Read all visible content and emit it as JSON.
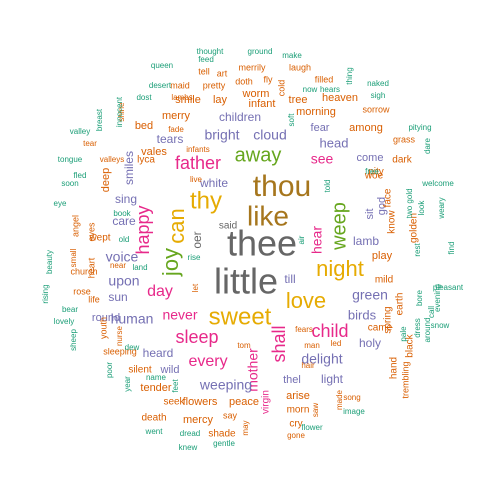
{
  "word_cloud": {
    "colors": {
      "teal": "#1b9e77",
      "orange": "#d95f02",
      "purple": "#7570b3",
      "pink": "#e7298a",
      "green": "#66a61e",
      "gold": "#e6ab02",
      "brown": "#a6761d",
      "gray": "#666666"
    },
    "words": [
      {
        "text": "thee",
        "weight": 36,
        "color": "gray"
      },
      {
        "text": "little",
        "weight": 36,
        "color": "gray"
      },
      {
        "text": "thou",
        "weight": 30,
        "color": "brown"
      },
      {
        "text": "like",
        "weight": 28,
        "color": "brown"
      },
      {
        "text": "thy",
        "weight": 24,
        "color": "gold"
      },
      {
        "text": "sweet",
        "weight": 24,
        "color": "gold"
      },
      {
        "text": "can",
        "weight": 22,
        "color": "gold"
      },
      {
        "text": "joy",
        "weight": 22,
        "color": "green"
      },
      {
        "text": "night",
        "weight": 22,
        "color": "gold"
      },
      {
        "text": "love",
        "weight": 22,
        "color": "gold"
      },
      {
        "text": "away",
        "weight": 20,
        "color": "green"
      },
      {
        "text": "weep",
        "weight": 20,
        "color": "green"
      },
      {
        "text": "sleep",
        "weight": 18,
        "color": "pink"
      },
      {
        "text": "father",
        "weight": 18,
        "color": "pink"
      },
      {
        "text": "happy",
        "weight": 18,
        "color": "pink"
      },
      {
        "text": "shall",
        "weight": 18,
        "color": "pink"
      },
      {
        "text": "child",
        "weight": 18,
        "color": "pink"
      },
      {
        "text": "day",
        "weight": 16,
        "color": "pink"
      },
      {
        "text": "every",
        "weight": 16,
        "color": "pink"
      },
      {
        "text": "mother",
        "weight": 14,
        "color": "pink"
      },
      {
        "text": "never",
        "weight": 14,
        "color": "pink"
      },
      {
        "text": "hear",
        "weight": 14,
        "color": "pink"
      },
      {
        "text": "see",
        "weight": 14,
        "color": "pink"
      },
      {
        "text": "bright",
        "weight": 14,
        "color": "purple"
      },
      {
        "text": "cloud",
        "weight": 14,
        "color": "purple"
      },
      {
        "text": "voice",
        "weight": 14,
        "color": "purple"
      },
      {
        "text": "human",
        "weight": 14,
        "color": "purple"
      },
      {
        "text": "weeping",
        "weight": 14,
        "color": "purple"
      },
      {
        "text": "green",
        "weight": 14,
        "color": "purple"
      },
      {
        "text": "upon",
        "weight": 14,
        "color": "purple"
      },
      {
        "text": "delight",
        "weight": 14,
        "color": "purple"
      },
      {
        "text": "head",
        "weight": 13,
        "color": "purple"
      },
      {
        "text": "birds",
        "weight": 13,
        "color": "purple"
      },
      {
        "text": "children",
        "weight": 12,
        "color": "purple"
      },
      {
        "text": "white",
        "weight": 12,
        "color": "purple"
      },
      {
        "text": "heard",
        "weight": 12,
        "color": "purple"
      },
      {
        "text": "lamb",
        "weight": 12,
        "color": "purple"
      },
      {
        "text": "light",
        "weight": 12,
        "color": "purple"
      },
      {
        "text": "till",
        "weight": 12,
        "color": "purple"
      },
      {
        "text": "tears",
        "weight": 12,
        "color": "purple"
      },
      {
        "text": "oer",
        "weight": 12,
        "color": "gray"
      },
      {
        "text": "sing",
        "weight": 12,
        "color": "purple"
      },
      {
        "text": "holy",
        "weight": 12,
        "color": "purple"
      },
      {
        "text": "smiles",
        "weight": 12,
        "color": "purple"
      },
      {
        "text": "sun",
        "weight": 12,
        "color": "purple"
      },
      {
        "text": "care",
        "weight": 12,
        "color": "purple"
      },
      {
        "text": "round",
        "weight": 11,
        "color": "purple"
      },
      {
        "text": "come",
        "weight": 11,
        "color": "purple"
      },
      {
        "text": "thel",
        "weight": 11,
        "color": "purple"
      },
      {
        "text": "wild",
        "weight": 11,
        "color": "purple"
      },
      {
        "text": "fear",
        "weight": 11,
        "color": "purple"
      },
      {
        "text": "sit",
        "weight": 11,
        "color": "purple"
      },
      {
        "text": "god",
        "weight": 11,
        "color": "purple"
      },
      {
        "text": "said",
        "weight": 10,
        "color": "gray"
      },
      {
        "text": "morning",
        "weight": 11,
        "color": "orange"
      },
      {
        "text": "among",
        "weight": 11,
        "color": "orange"
      },
      {
        "text": "merry",
        "weight": 11,
        "color": "orange"
      },
      {
        "text": "smile",
        "weight": 11,
        "color": "orange"
      },
      {
        "text": "lay",
        "weight": 11,
        "color": "orange"
      },
      {
        "text": "infant",
        "weight": 11,
        "color": "orange"
      },
      {
        "text": "worm",
        "weight": 11,
        "color": "orange"
      },
      {
        "text": "tree",
        "weight": 11,
        "color": "orange"
      },
      {
        "text": "heaven",
        "weight": 11,
        "color": "orange"
      },
      {
        "text": "bed",
        "weight": 11,
        "color": "orange"
      },
      {
        "text": "vales",
        "weight": 11,
        "color": "orange"
      },
      {
        "text": "lyca",
        "weight": 10,
        "color": "orange"
      },
      {
        "text": "deep",
        "weight": 11,
        "color": "orange"
      },
      {
        "text": "wept",
        "weight": 10,
        "color": "orange"
      },
      {
        "text": "tender",
        "weight": 11,
        "color": "orange"
      },
      {
        "text": "silent",
        "weight": 10,
        "color": "orange"
      },
      {
        "text": "flowers",
        "weight": 11,
        "color": "orange"
      },
      {
        "text": "seek",
        "weight": 10,
        "color": "orange"
      },
      {
        "text": "peace",
        "weight": 11,
        "color": "orange"
      },
      {
        "text": "mercy",
        "weight": 11,
        "color": "orange"
      },
      {
        "text": "death",
        "weight": 10,
        "color": "orange"
      },
      {
        "text": "shade",
        "weight": 10,
        "color": "orange"
      },
      {
        "text": "arise",
        "weight": 11,
        "color": "orange"
      },
      {
        "text": "morn",
        "weight": 10,
        "color": "orange"
      },
      {
        "text": "cry",
        "weight": 10,
        "color": "orange"
      },
      {
        "text": "virgin",
        "weight": 10,
        "color": "pink"
      },
      {
        "text": "play",
        "weight": 11,
        "color": "orange"
      },
      {
        "text": "mild",
        "weight": 10,
        "color": "orange"
      },
      {
        "text": "spring",
        "weight": 10,
        "color": "orange"
      },
      {
        "text": "earth",
        "weight": 10,
        "color": "orange"
      },
      {
        "text": "came",
        "weight": 10,
        "color": "orange"
      },
      {
        "text": "hand",
        "weight": 10,
        "color": "orange"
      },
      {
        "text": "black",
        "weight": 10,
        "color": "orange"
      },
      {
        "text": "trembling",
        "weight": 9,
        "color": "orange"
      },
      {
        "text": "pity",
        "weight": 10,
        "color": "orange"
      },
      {
        "text": "woe",
        "weight": 10,
        "color": "orange"
      },
      {
        "text": "dark",
        "weight": 10,
        "color": "orange"
      },
      {
        "text": "know",
        "weight": 10,
        "color": "orange"
      },
      {
        "text": "face",
        "weight": 10,
        "color": "orange"
      },
      {
        "text": "golden",
        "weight": 10,
        "color": "orange"
      },
      {
        "text": "grass",
        "weight": 9,
        "color": "orange"
      },
      {
        "text": "sorrow",
        "weight": 9,
        "color": "orange"
      },
      {
        "text": "filled",
        "weight": 9,
        "color": "orange"
      },
      {
        "text": "laugh",
        "weight": 9,
        "color": "orange"
      },
      {
        "text": "merrily",
        "weight": 9,
        "color": "orange"
      },
      {
        "text": "doth",
        "weight": 9,
        "color": "orange"
      },
      {
        "text": "pretty",
        "weight": 9,
        "color": "orange"
      },
      {
        "text": "maid",
        "weight": 9,
        "color": "orange"
      },
      {
        "text": "tell",
        "weight": 9,
        "color": "orange"
      },
      {
        "text": "art",
        "weight": 9,
        "color": "orange"
      },
      {
        "text": "fly",
        "weight": 9,
        "color": "orange"
      },
      {
        "text": "cold",
        "weight": 9,
        "color": "orange"
      },
      {
        "text": "infants",
        "weight": 8,
        "color": "orange"
      },
      {
        "text": "valleys",
        "weight": 8,
        "color": "orange"
      },
      {
        "text": "live",
        "weight": 8,
        "color": "orange"
      },
      {
        "text": "angel",
        "weight": 9,
        "color": "orange"
      },
      {
        "text": "eyes",
        "weight": 9,
        "color": "orange"
      },
      {
        "text": "heart",
        "weight": 9,
        "color": "orange"
      },
      {
        "text": "small",
        "weight": 8,
        "color": "orange"
      },
      {
        "text": "church",
        "weight": 9,
        "color": "orange"
      },
      {
        "text": "rose",
        "weight": 9,
        "color": "orange"
      },
      {
        "text": "life",
        "weight": 9,
        "color": "orange"
      },
      {
        "text": "youth",
        "weight": 9,
        "color": "orange"
      },
      {
        "text": "nurse",
        "weight": 8,
        "color": "orange"
      },
      {
        "text": "sleeping",
        "weight": 9,
        "color": "orange"
      },
      {
        "text": "tom",
        "weight": 8,
        "color": "orange"
      },
      {
        "text": "man",
        "weight": 8,
        "color": "orange"
      },
      {
        "text": "led",
        "weight": 8,
        "color": "orange"
      },
      {
        "text": "hair",
        "weight": 8,
        "color": "orange"
      },
      {
        "text": "fears",
        "weight": 8,
        "color": "orange"
      },
      {
        "text": "made",
        "weight": 8,
        "color": "orange"
      },
      {
        "text": "song",
        "weight": 8,
        "color": "orange"
      },
      {
        "text": "saw",
        "weight": 8,
        "color": "orange"
      },
      {
        "text": "say",
        "weight": 9,
        "color": "orange"
      },
      {
        "text": "gone",
        "weight": 8,
        "color": "orange"
      },
      {
        "text": "fade",
        "weight": 8,
        "color": "orange"
      },
      {
        "text": "lambs",
        "weight": 8,
        "color": "orange"
      },
      {
        "text": "tear",
        "weight": 8,
        "color": "orange"
      },
      {
        "text": "may",
        "weight": 8,
        "color": "orange"
      },
      {
        "text": "let",
        "weight": 8,
        "color": "orange"
      },
      {
        "text": "shine",
        "weight": 8,
        "color": "orange"
      },
      {
        "text": "near",
        "weight": 8,
        "color": "orange"
      },
      {
        "text": "rest",
        "weight": 8,
        "color": "teal"
      },
      {
        "text": "dress",
        "weight": 8,
        "color": "teal"
      },
      {
        "text": "pale",
        "weight": 8,
        "color": "teal"
      },
      {
        "text": "thought",
        "weight": 8,
        "color": "teal"
      },
      {
        "text": "ground",
        "weight": 8,
        "color": "teal"
      },
      {
        "text": "make",
        "weight": 8,
        "color": "teal"
      },
      {
        "text": "queen",
        "weight": 8,
        "color": "teal"
      },
      {
        "text": "feed",
        "weight": 8,
        "color": "teal"
      },
      {
        "text": "desert",
        "weight": 8,
        "color": "teal"
      },
      {
        "text": "dost",
        "weight": 8,
        "color": "teal"
      },
      {
        "text": "innocent",
        "weight": 8,
        "color": "teal"
      },
      {
        "text": "breast",
        "weight": 8,
        "color": "teal"
      },
      {
        "text": "valley",
        "weight": 8,
        "color": "teal"
      },
      {
        "text": "tongue",
        "weight": 8,
        "color": "teal"
      },
      {
        "text": "soon",
        "weight": 8,
        "color": "teal"
      },
      {
        "text": "fled",
        "weight": 8,
        "color": "teal"
      },
      {
        "text": "eye",
        "weight": 8,
        "color": "teal"
      },
      {
        "text": "beauty",
        "weight": 8,
        "color": "teal"
      },
      {
        "text": "rising",
        "weight": 8,
        "color": "teal"
      },
      {
        "text": "lovely",
        "weight": 8,
        "color": "teal"
      },
      {
        "text": "bear",
        "weight": 8,
        "color": "teal"
      },
      {
        "text": "sheep",
        "weight": 8,
        "color": "teal"
      },
      {
        "text": "poor",
        "weight": 8,
        "color": "teal"
      },
      {
        "text": "year",
        "weight": 8,
        "color": "teal"
      },
      {
        "text": "went",
        "weight": 8,
        "color": "teal"
      },
      {
        "text": "dread",
        "weight": 8,
        "color": "teal"
      },
      {
        "text": "knew",
        "weight": 8,
        "color": "teal"
      },
      {
        "text": "gentle",
        "weight": 8,
        "color": "teal"
      },
      {
        "text": "flower",
        "weight": 8,
        "color": "teal"
      },
      {
        "text": "image",
        "weight": 8,
        "color": "teal"
      },
      {
        "text": "dew",
        "weight": 8,
        "color": "teal"
      },
      {
        "text": "name",
        "weight": 8,
        "color": "teal"
      },
      {
        "text": "feet",
        "weight": 8,
        "color": "teal"
      },
      {
        "text": "book",
        "weight": 8,
        "color": "teal"
      },
      {
        "text": "rise",
        "weight": 8,
        "color": "teal"
      },
      {
        "text": "land",
        "weight": 8,
        "color": "teal"
      },
      {
        "text": "old",
        "weight": 8,
        "color": "teal"
      },
      {
        "text": "air",
        "weight": 8,
        "color": "teal"
      },
      {
        "text": "told",
        "weight": 8,
        "color": "teal"
      },
      {
        "text": "free",
        "weight": 8,
        "color": "teal"
      },
      {
        "text": "two",
        "weight": 8,
        "color": "teal"
      },
      {
        "text": "look",
        "weight": 8,
        "color": "teal"
      },
      {
        "text": "bore",
        "weight": 8,
        "color": "teal"
      },
      {
        "text": "call",
        "weight": 8,
        "color": "teal"
      },
      {
        "text": "snow",
        "weight": 8,
        "color": "teal"
      },
      {
        "text": "evening",
        "weight": 8,
        "color": "teal"
      },
      {
        "text": "pleasant",
        "weight": 8,
        "color": "teal"
      },
      {
        "text": "find",
        "weight": 8,
        "color": "teal"
      },
      {
        "text": "weary",
        "weight": 8,
        "color": "teal"
      },
      {
        "text": "welcome",
        "weight": 8,
        "color": "teal"
      },
      {
        "text": "dare",
        "weight": 8,
        "color": "teal"
      },
      {
        "text": "pitying",
        "weight": 8,
        "color": "teal"
      },
      {
        "text": "sigh",
        "weight": 8,
        "color": "teal"
      },
      {
        "text": "naked",
        "weight": 8,
        "color": "teal"
      },
      {
        "text": "thing",
        "weight": 8,
        "color": "teal"
      },
      {
        "text": "hears",
        "weight": 8,
        "color": "teal"
      },
      {
        "text": "now",
        "weight": 8,
        "color": "teal"
      },
      {
        "text": "soft",
        "weight": 8,
        "color": "teal"
      },
      {
        "text": "around",
        "weight": 8,
        "color": "teal"
      },
      {
        "text": "gold",
        "weight": 8,
        "color": "teal"
      }
    ]
  }
}
